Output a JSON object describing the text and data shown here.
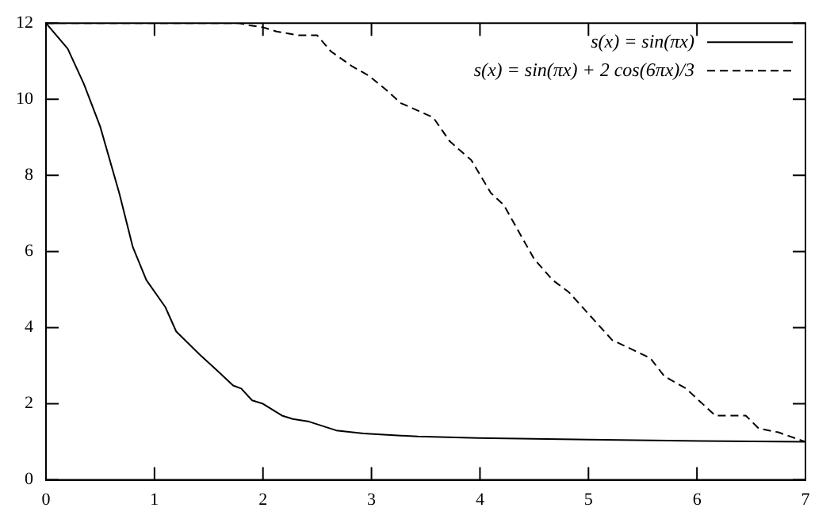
{
  "chart_data": {
    "type": "line",
    "legend": "top right",
    "xlim": [
      0,
      7
    ],
    "xticks": [
      0,
      1,
      2,
      3,
      4,
      5,
      6,
      7
    ],
    "ylim": [
      0,
      12
    ],
    "yticks": [
      0,
      2,
      4,
      6,
      8,
      10,
      12
    ],
    "marker": "none",
    "series": [
      {
        "name": "s(x) = sin(πx)",
        "color": "#000000",
        "line_style": "solid",
        "x": [
          0,
          0.2,
          0.35,
          0.5,
          0.675,
          0.8,
          0.925,
          1.1,
          1.2,
          1.425,
          1.575,
          1.725,
          1.8,
          1.9,
          2.0,
          2.175,
          2.275,
          2.425,
          2.675,
          2.925,
          3.425,
          3.98,
          5.0,
          6.03,
          7.0
        ],
        "values": [
          12,
          11.33,
          10.4,
          9.28,
          7.54,
          6.12,
          5.25,
          4.54,
          3.9,
          3.27,
          2.88,
          2.48,
          2.4,
          2.09,
          2.0,
          1.69,
          1.6,
          1.53,
          1.3,
          1.22,
          1.14,
          1.1,
          1.06,
          1.02,
          1.0
        ]
      },
      {
        "name": "s(x) = sin(πx) + 2 cos(6πx)/3",
        "color": "#000000",
        "line_style": "dashed",
        "x": [
          0,
          1.78,
          1.875,
          2.0,
          2.125,
          2.33,
          2.5,
          2.625,
          2.825,
          2.975,
          3.13,
          3.27,
          3.57,
          3.72,
          3.92,
          4.1,
          4.22,
          4.5,
          4.67,
          4.82,
          5.07,
          5.22,
          5.4,
          5.57,
          5.7,
          5.9,
          6.02,
          6.17,
          6.45,
          6.57,
          6.75,
          6.95,
          7.0
        ],
        "values": [
          12,
          12,
          11.94,
          11.89,
          11.78,
          11.68,
          11.68,
          11.26,
          10.86,
          10.62,
          10.26,
          9.9,
          9.52,
          8.9,
          8.4,
          7.54,
          7.22,
          5.8,
          5.25,
          4.93,
          4.14,
          3.67,
          3.43,
          3.2,
          2.72,
          2.4,
          2.08,
          1.69,
          1.69,
          1.35,
          1.25,
          1.05,
          1.0
        ]
      }
    ]
  }
}
